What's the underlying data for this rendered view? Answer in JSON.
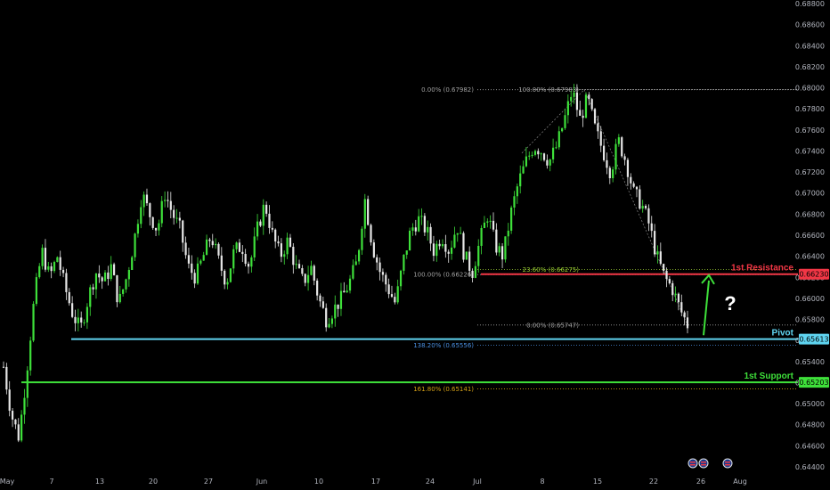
{
  "chart_data": {
    "type": "candlestick",
    "instrument": "",
    "ylim": [
      0.644,
      0.688
    ],
    "y_ticks": [
      "0.68800",
      "0.68600",
      "0.68400",
      "0.68200",
      "0.68000",
      "0.67800",
      "0.67600",
      "0.67400",
      "0.67200",
      "0.67000",
      "0.66800",
      "0.66600",
      "0.66400",
      "0.66200",
      "0.66000",
      "0.65800",
      "0.65600",
      "0.65400",
      "0.65200",
      "0.65000",
      "0.64800",
      "0.64600",
      "0.64400"
    ],
    "x_ticks": [
      "May",
      "7",
      "13",
      "20",
      "27",
      "Jun",
      "10",
      "17",
      "24",
      "Jul",
      "8",
      "15",
      "22",
      "26",
      "Aug"
    ],
    "close_path": [
      0.6535,
      0.649,
      0.6468,
      0.653,
      0.66,
      0.6645,
      0.662,
      0.664,
      0.661,
      0.6585,
      0.657,
      0.66,
      0.6625,
      0.6615,
      0.663,
      0.6595,
      0.662,
      0.6655,
      0.67,
      0.668,
      0.6665,
      0.67,
      0.668,
      0.6665,
      0.663,
      0.662,
      0.664,
      0.666,
      0.6635,
      0.6615,
      0.6645,
      0.665,
      0.663,
      0.6665,
      0.669,
      0.666,
      0.664,
      0.6655,
      0.663,
      0.6615,
      0.663,
      0.66,
      0.658,
      0.659,
      0.66,
      0.6615,
      0.6635,
      0.6695,
      0.665,
      0.6625,
      0.661,
      0.6595,
      0.6635,
      0.6665,
      0.6675,
      0.6665,
      0.6645,
      0.666,
      0.6645,
      0.667,
      0.664,
      0.6625,
      0.6655,
      0.668,
      0.665,
      0.664,
      0.668,
      0.671,
      0.673,
      0.6745,
      0.674,
      0.673,
      0.6745,
      0.677,
      0.6798,
      0.677,
      0.679,
      0.676,
      0.674,
      0.672,
      0.675,
      0.673,
      0.67,
      0.669,
      0.667,
      0.664,
      0.662,
      0.661,
      0.659,
      0.6575
    ],
    "levels": {
      "resistance": {
        "label": "1st Resistance",
        "value": 0.6623,
        "tag": "0.66230",
        "color": "#f23645"
      },
      "pivot": {
        "label": "Pivot",
        "value": 0.65613,
        "tag": "0.65613",
        "color": "#5fd4f0"
      },
      "support": {
        "label": "1st Support",
        "value": 0.65203,
        "tag": "0.65203",
        "color": "#3ee03a"
      }
    },
    "fib_levels": [
      {
        "label": "0.00% (0.67982)",
        "value": 0.67982,
        "color": "#a0a0a0"
      },
      {
        "label": "100.00% (0.67983)",
        "value": 0.67983,
        "color": "#a0a0a0"
      },
      {
        "label": "100.00% (0.66226)",
        "value": 0.66226,
        "color": "#a0a0a0"
      },
      {
        "label": "23.60% (0.66275)",
        "value": 0.66275,
        "color": "#9acd32"
      },
      {
        "label": "0.00% (0.65747)",
        "value": 0.65747,
        "color": "#a0a0a0"
      },
      {
        "label": "138.20% (0.65556)",
        "value": 0.65556,
        "color": "#4a90e2"
      },
      {
        "label": "161.80% (0.65141)",
        "value": 0.65141,
        "color": "#d4a017"
      }
    ],
    "annotation": {
      "text": "?"
    },
    "colors": {
      "up": "#3ee03a",
      "down": "#e6e6e6",
      "background": "#000000",
      "axis_text": "#b2b5be"
    }
  }
}
